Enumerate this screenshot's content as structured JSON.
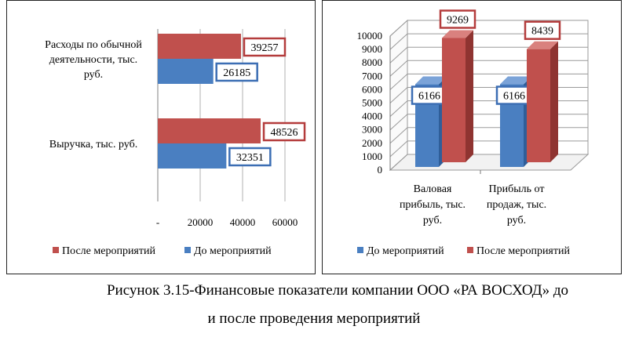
{
  "colors": {
    "before": "#4a7fc1",
    "after": "#c0504d",
    "before_label_border": "#3c6eb4",
    "after_label_border": "#b43c3c"
  },
  "caption": {
    "line1": "Рисунок 3.15-Финансовые показатели компании ООО «РА ВОСХОД» до",
    "line2": "и после проведения мероприятий"
  },
  "chart_data": [
    {
      "type": "bar",
      "orientation": "horizontal",
      "categories": [
        "Расходы по обычной деятельности, тыс. руб.",
        "Выручка, тыс. руб."
      ],
      "category_label_lines": [
        [
          "Расходы по обычной",
          "деятельности, тыс.",
          "руб."
        ],
        [
          "Выручка, тыс. руб."
        ]
      ],
      "series": [
        {
          "name": "После мероприятий",
          "values": [
            39257,
            48526
          ]
        },
        {
          "name": "До мероприятий",
          "values": [
            26185,
            32351
          ]
        }
      ],
      "xlim": [
        0,
        60000
      ],
      "tick_labels": [
        "-",
        "20000",
        "40000",
        "60000"
      ],
      "legend": [
        "После мероприятий",
        "До мероприятий"
      ],
      "legend_position": "bottom",
      "grid": true
    },
    {
      "type": "bar",
      "orientation": "vertical",
      "style": "3d",
      "categories": [
        "Валовая прибыль, тыс. руб.",
        "Прибыль от продаж, тыс. руб."
      ],
      "category_label_lines": [
        [
          "Валовая",
          "прибыль, тыс.",
          "руб."
        ],
        [
          "Прибыль от",
          "продаж, тыс.",
          "руб."
        ]
      ],
      "series": [
        {
          "name": "До мероприятий",
          "values": [
            6166,
            6166
          ]
        },
        {
          "name": "После мероприятий",
          "values": [
            9269,
            8439
          ]
        }
      ],
      "ylim": [
        0,
        10000
      ],
      "tick_labels": [
        "0",
        "1000",
        "2000",
        "3000",
        "4000",
        "5000",
        "6000",
        "7000",
        "8000",
        "9000",
        "10000"
      ],
      "legend": [
        "До мероприятий",
        "После мероприятий"
      ],
      "legend_position": "bottom",
      "grid": true
    }
  ]
}
